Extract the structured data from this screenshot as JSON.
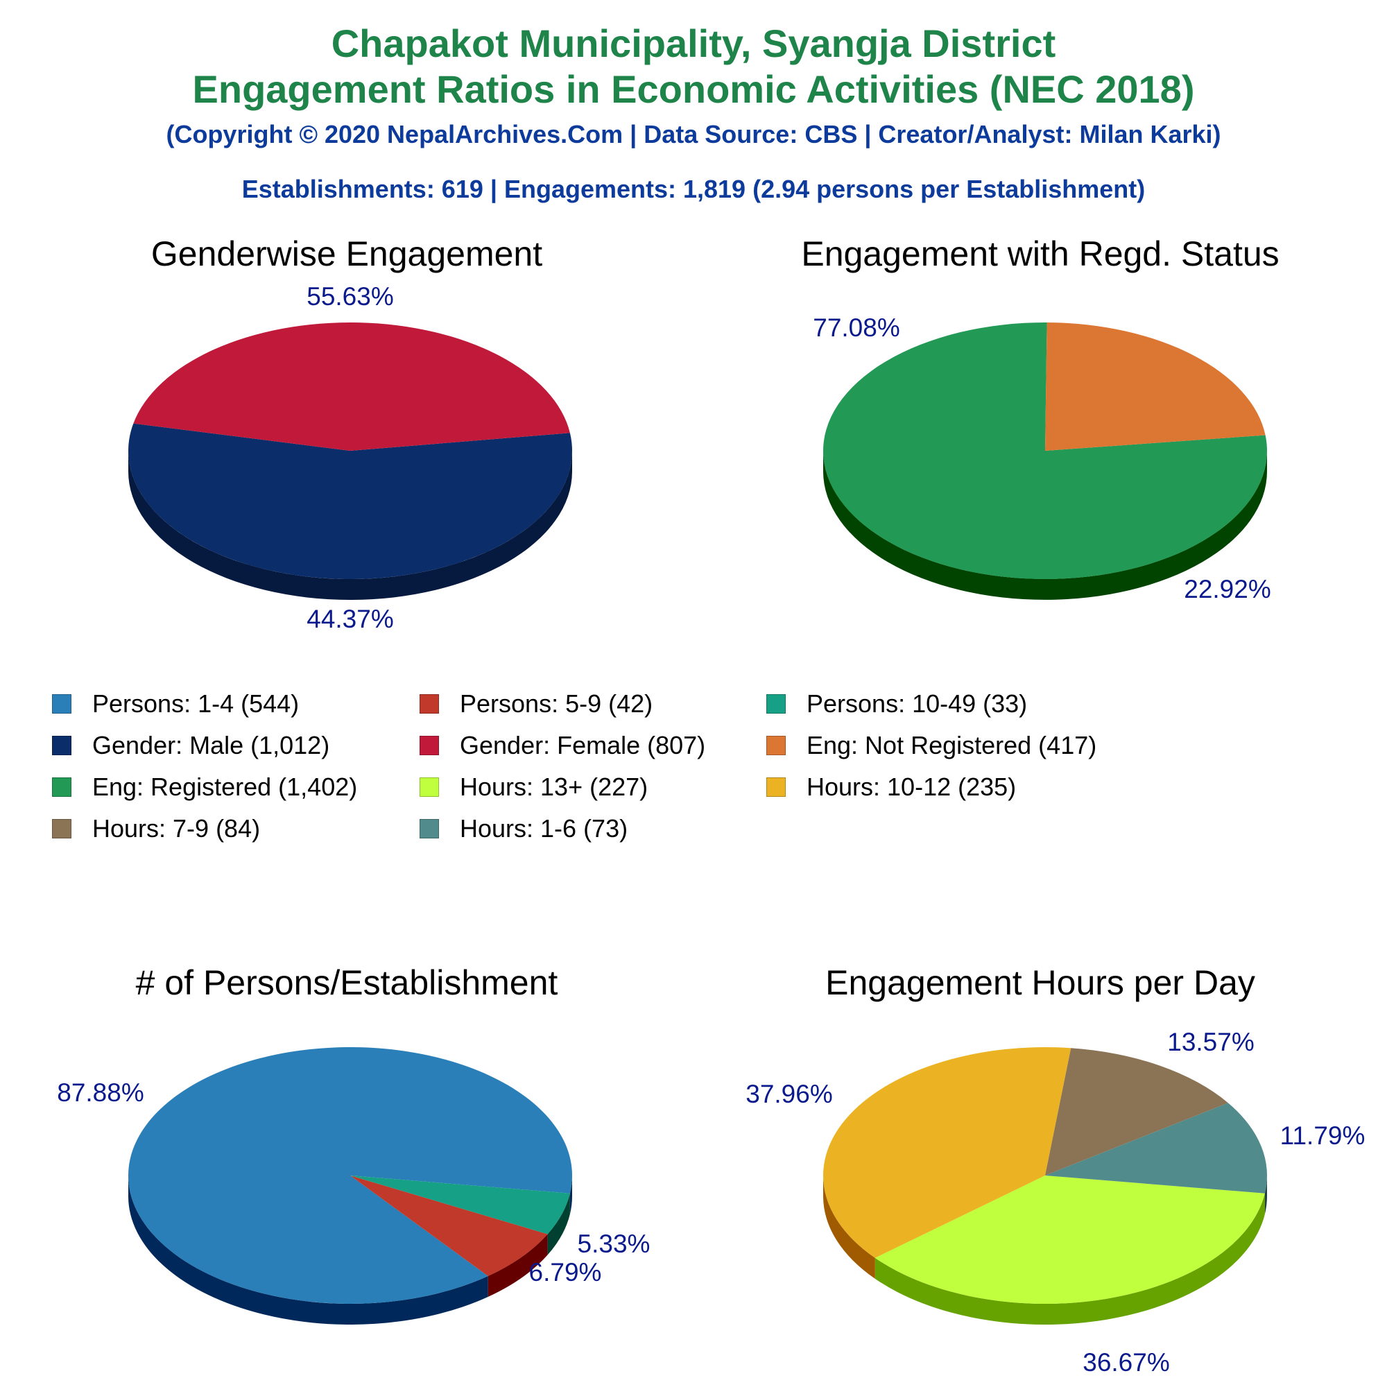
{
  "header": {
    "title_line1": "Chapakot Municipality, Syangja District",
    "title_line2": "Engagement Ratios in Economic Activities (NEC 2018)",
    "copyright": "(Copyright © 2020 NepalArchives.Com | Data Source: CBS | Creator/Analyst: Milan Karki)",
    "summary": "Establishments: 619 | Engagements: 1,819 (2.94 persons per Establishment)"
  },
  "colors": {
    "title": "#1e8449",
    "subtitle": "#0d3b9c",
    "pct_label": "#0a1a8c"
  },
  "legend": [
    {
      "label": "Persons: 1-4 (544)",
      "color": "#2a7fb8"
    },
    {
      "label": "Persons: 5-9 (42)",
      "color": "#c0392b"
    },
    {
      "label": "Persons: 10-49 (33)",
      "color": "#16a085"
    },
    {
      "label": "Gender: Male (1,012)",
      "color": "#0b2d69"
    },
    {
      "label": "Gender: Female (807)",
      "color": "#c0193a"
    },
    {
      "label": "Eng: Not Registered (417)",
      "color": "#dc7633"
    },
    {
      "label": "Eng: Registered (1,402)",
      "color": "#229954"
    },
    {
      "label": "Hours: 13+ (227)",
      "color": "#c0ff3e"
    },
    {
      "label": "Hours: 10-12 (235)",
      "color": "#ebb323"
    },
    {
      "label": "Hours: 7-9 (84)",
      "color": "#8b7355"
    },
    {
      "label": "Hours: 1-6 (73)",
      "color": "#528b8b"
    }
  ],
  "chart_data": [
    {
      "type": "pie",
      "title": "Genderwise Engagement",
      "slices": [
        {
          "name": "Gender: Male",
          "value": 1012,
          "label": "55.63%",
          "color": "#0b2d69",
          "side": "#061a40"
        },
        {
          "name": "Gender: Female",
          "value": 807,
          "label": "44.37%",
          "color": "#c0193a",
          "side": "#650000"
        }
      ]
    },
    {
      "type": "pie",
      "title": "Engagement with Regd. Status",
      "slices": [
        {
          "name": "Eng: Registered",
          "value": 1402,
          "label": "77.08%",
          "color": "#229954",
          "side": "#004400"
        },
        {
          "name": "Eng: Not Registered",
          "value": 417,
          "label": "22.92%",
          "color": "#dc7633",
          "side": "#7a1c00"
        }
      ]
    },
    {
      "type": "pie",
      "title": "# of Persons/Establishment",
      "slices": [
        {
          "name": "Persons: 1-4",
          "value": 544,
          "label": "87.88%",
          "color": "#2a7fb8",
          "side": "#00285a"
        },
        {
          "name": "Persons: 5-9",
          "value": 42,
          "label": "6.79%",
          "color": "#c0392b",
          "side": "#650000"
        },
        {
          "name": "Persons: 10-49",
          "value": 33,
          "label": "5.33%",
          "color": "#16a085",
          "side": "#004030"
        }
      ]
    },
    {
      "type": "pie",
      "title": "Engagement Hours per Day",
      "slices": [
        {
          "name": "Hours: 13+",
          "value": 227,
          "label": "36.67%",
          "color": "#c0ff3e",
          "side": "#66a300"
        },
        {
          "name": "Hours: 10-12",
          "value": 235,
          "label": "37.96%",
          "color": "#ebb323",
          "side": "#a05a00"
        },
        {
          "name": "Hours: 7-9",
          "value": 84,
          "label": "13.57%",
          "color": "#8b7355",
          "side": "#4a3b20"
        },
        {
          "name": "Hours: 1-6",
          "value": 73,
          "label": "11.79%",
          "color": "#528b8b",
          "side": "#1f4040"
        }
      ]
    }
  ]
}
